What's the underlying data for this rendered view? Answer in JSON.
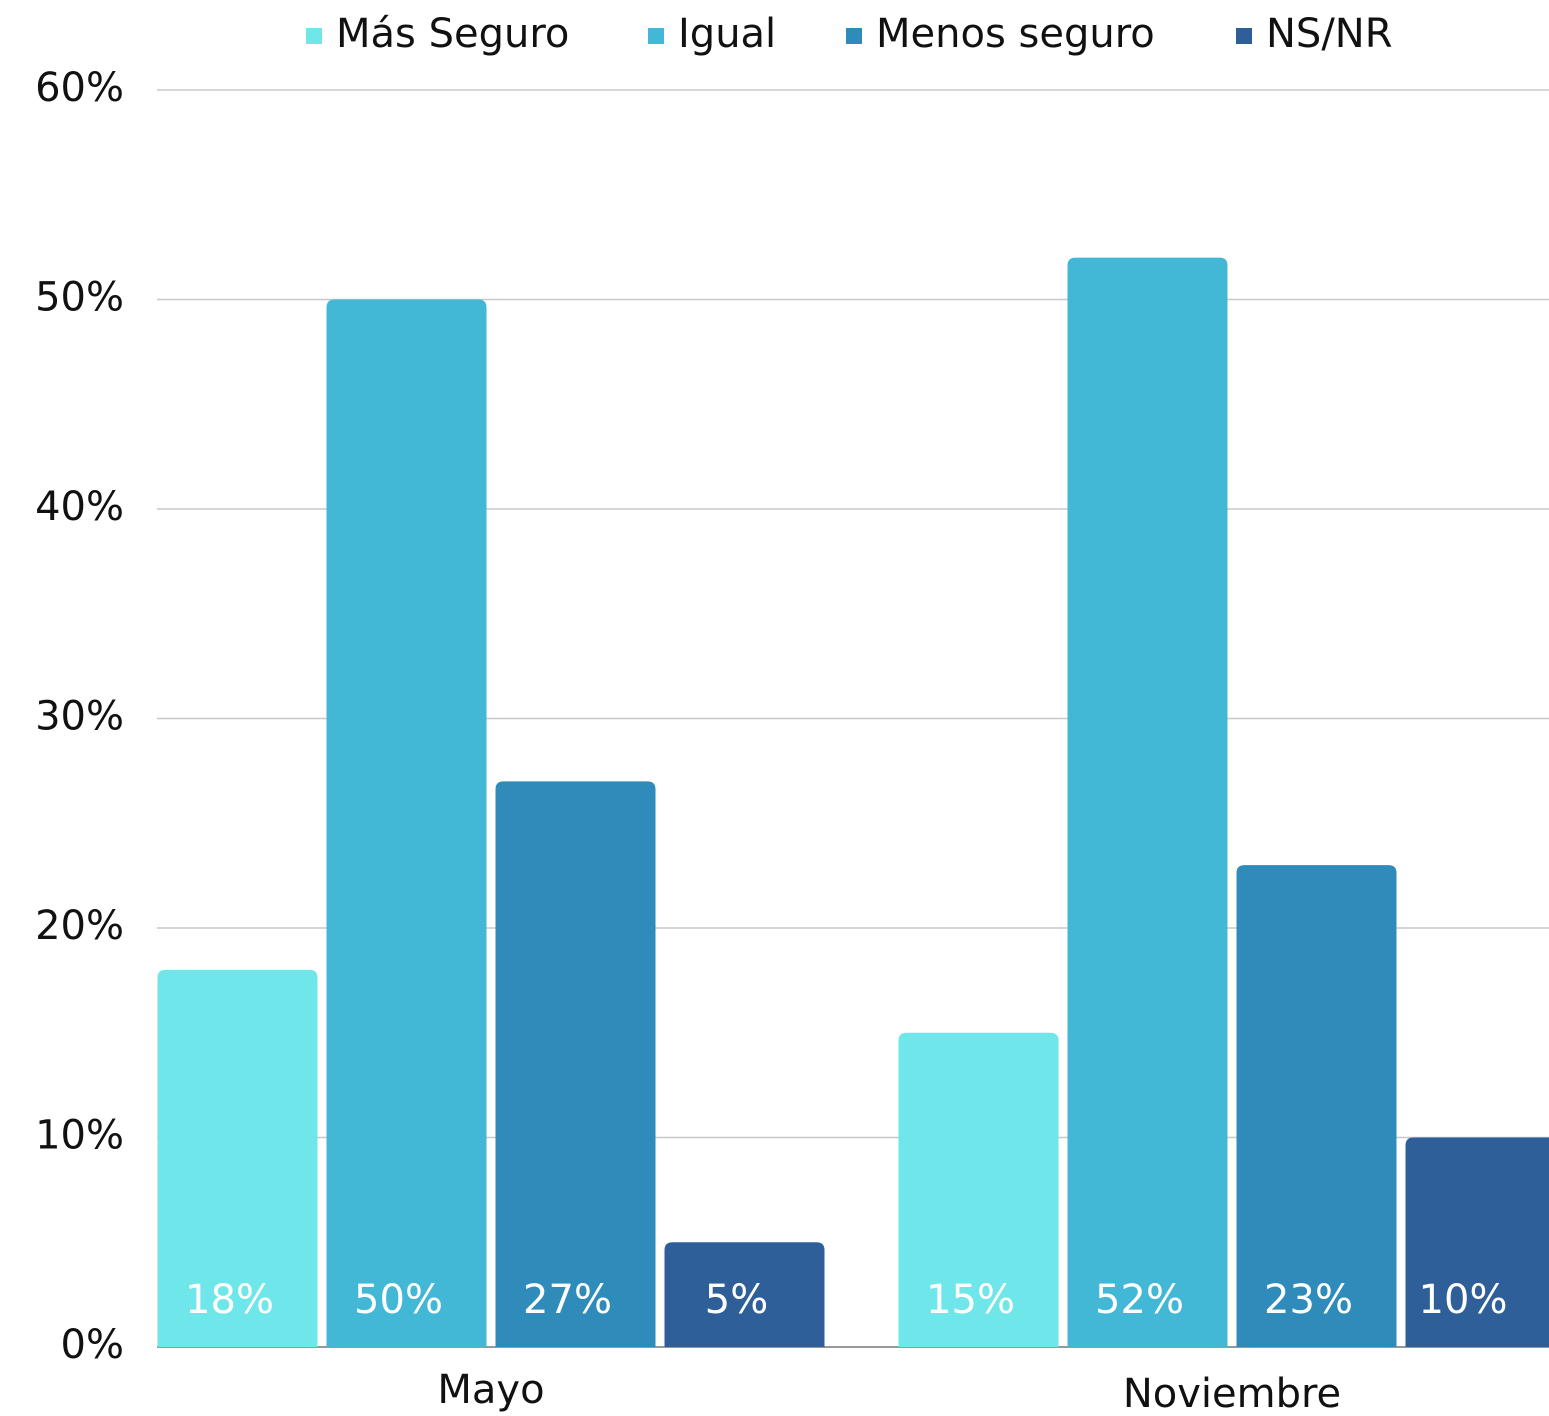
{
  "chart_data": {
    "type": "bar",
    "categories": [
      "Mayo",
      "Noviembre"
    ],
    "series": [
      {
        "name": "Más Seguro",
        "color": "#6ee6ea",
        "values": [
          18,
          15
        ],
        "value_labels": [
          "18%",
          "15%"
        ]
      },
      {
        "name": "Igual",
        "color": "#42b7d6",
        "values": [
          50,
          52
        ],
        "value_labels": [
          "50%",
          "52%"
        ]
      },
      {
        "name": "Menos seguro",
        "color": "#2e8bba",
        "values": [
          27,
          23
        ],
        "value_labels": [
          "27%",
          "23%"
        ]
      },
      {
        "name": "NS/NR",
        "color": "#2e5f98",
        "values": [
          5,
          10
        ],
        "value_labels": [
          "5%",
          "10%"
        ]
      }
    ],
    "ylim": [
      0,
      60
    ],
    "yticks": [
      {
        "value": 0,
        "label": "0%"
      },
      {
        "value": 10,
        "label": "10%"
      },
      {
        "value": 20,
        "label": "20%"
      },
      {
        "value": 30,
        "label": "30%"
      },
      {
        "value": 40,
        "label": "40%"
      },
      {
        "value": 50,
        "label": "50%"
      },
      {
        "value": 60,
        "label": "60%"
      }
    ],
    "grid": true,
    "legend": "top"
  }
}
